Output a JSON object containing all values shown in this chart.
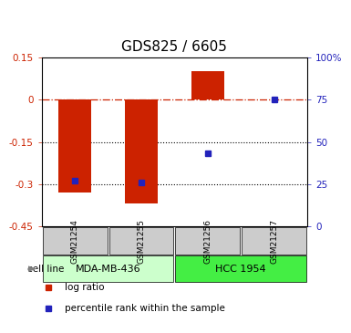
{
  "title": "GDS825 / 6605",
  "samples": [
    "GSM21254",
    "GSM21255",
    "GSM21256",
    "GSM21257"
  ],
  "log_ratios": [
    -0.33,
    -0.37,
    0.1,
    0.0
  ],
  "percentile_ranks": [
    27,
    26,
    43,
    75
  ],
  "cell_lines": [
    {
      "label": "MDA-MB-436",
      "samples": [
        0,
        1
      ],
      "color": "#ccffcc"
    },
    {
      "label": "HCC 1954",
      "samples": [
        2,
        3
      ],
      "color": "#44ee44"
    }
  ],
  "ylim_left": [
    -0.45,
    0.15
  ],
  "ylim_right": [
    0,
    100
  ],
  "yticks_left": [
    0.15,
    0.0,
    -0.15,
    -0.3,
    -0.45
  ],
  "yticks_right": [
    100,
    75,
    50,
    25,
    0
  ],
  "bar_color": "#cc2200",
  "dot_color": "#2222bb",
  "bar_width": 0.5,
  "title_fontsize": 11,
  "tick_fontsize": 7.5,
  "legend_fontsize": 7.5,
  "gsm_fontsize": 6.5,
  "cell_line_fontsize": 8
}
